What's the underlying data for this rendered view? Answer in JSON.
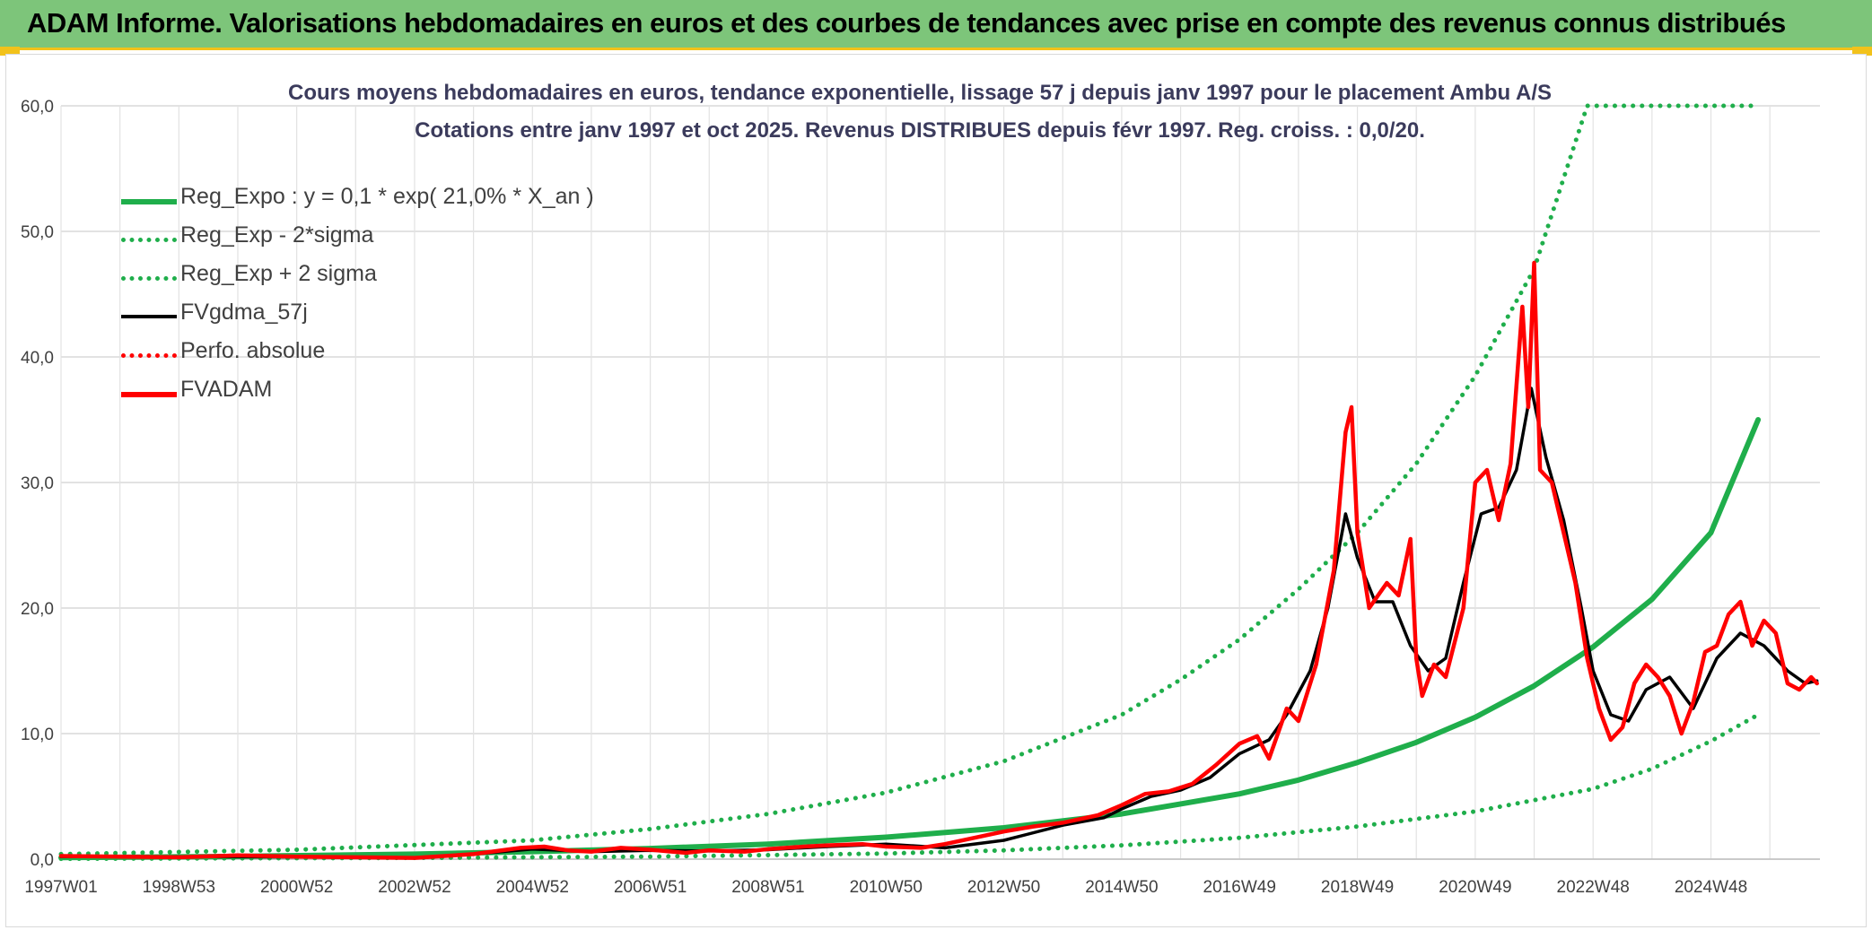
{
  "header": {
    "title": "ADAM Informe. Valorisations hebdomadaires en euros et des courbes de tendances avec prise en compte des revenus connus distribués"
  },
  "colors": {
    "header_bg": "#7dc57a",
    "accent_yellow": "#f2c21b",
    "reg_expo": "#1fae4b",
    "fvgdma": "#000000",
    "fvadam": "#ff0000"
  },
  "chart_data": {
    "type": "line",
    "title": "Cours moyens hebdomadaires en euros, tendance exponentielle, lissage 57 j depuis janv 1997 pour le placement Ambu A/S",
    "subtitle": "Cotations entre janv 1997 et oct 2025. Revenus DISTRIBUES depuis févr 1997. Reg. croiss. : 0,0/20.",
    "ylim": [
      0,
      60
    ],
    "yticks": [
      "0,0",
      "10,0",
      "20,0",
      "30,0",
      "40,0",
      "50,0",
      "60,0"
    ],
    "xlim": [
      1997.0,
      2025.8
    ],
    "xticks": [
      {
        "label": "1997W01",
        "x": 1997.0
      },
      {
        "label": "1998W53",
        "x": 1999.0
      },
      {
        "label": "2000W52",
        "x": 2001.0
      },
      {
        "label": "2002W52",
        "x": 2003.0
      },
      {
        "label": "2004W52",
        "x": 2005.0
      },
      {
        "label": "2006W51",
        "x": 2007.0
      },
      {
        "label": "2008W51",
        "x": 2009.0
      },
      {
        "label": "2010W50",
        "x": 2011.0
      },
      {
        "label": "2012W50",
        "x": 2013.0
      },
      {
        "label": "2014W50",
        "x": 2015.0
      },
      {
        "label": "2016W49",
        "x": 2017.0
      },
      {
        "label": "2018W49",
        "x": 2019.0
      },
      {
        "label": "2020W49",
        "x": 2021.0
      },
      {
        "label": "2022W48",
        "x": 2023.0
      },
      {
        "label": "2024W48",
        "x": 2025.0
      }
    ],
    "grid": true,
    "legend_position": "top-left",
    "legend": [
      {
        "label": "Reg_Expo : y = 0,1 * exp( 21,0% *  X_an )",
        "color": "#1fae4b",
        "style": "solid"
      },
      {
        "label": "Reg_Exp - 2*sigma",
        "color": "#1fae4b",
        "style": "dotted"
      },
      {
        "label": "Reg_Exp + 2 sigma",
        "color": "#1fae4b",
        "style": "dotted"
      },
      {
        "label": "FVgdma_57j",
        "color": "#000000",
        "style": "solid"
      },
      {
        "label": "Perfo. absolue",
        "color": "#ff0000",
        "style": "dotted"
      },
      {
        "label": "FVADAM",
        "color": "#ff0000",
        "style": "solid"
      }
    ],
    "series": [
      {
        "name": "Reg_Expo : y = 0,1 * exp( 21,0% *  X_an )",
        "points": [
          [
            1997.0,
            0.12
          ],
          [
            2000.0,
            0.22
          ],
          [
            2003.0,
            0.4
          ],
          [
            2005.0,
            0.6
          ],
          [
            2007.0,
            0.85
          ],
          [
            2009.0,
            1.2
          ],
          [
            2011.0,
            1.75
          ],
          [
            2013.0,
            2.5
          ],
          [
            2015.0,
            3.6
          ],
          [
            2016.0,
            4.4
          ],
          [
            2017.0,
            5.2
          ],
          [
            2018.0,
            6.3
          ],
          [
            2019.0,
            7.7
          ],
          [
            2020.0,
            9.3
          ],
          [
            2021.0,
            11.3
          ],
          [
            2022.0,
            13.8
          ],
          [
            2023.0,
            16.9
          ],
          [
            2024.0,
            20.7
          ],
          [
            2025.0,
            26.0
          ],
          [
            2025.8,
            35.0
          ]
        ]
      },
      {
        "name": "Reg_Exp - 2*sigma",
        "points": [
          [
            1997.0,
            0.03
          ],
          [
            2003.0,
            0.1
          ],
          [
            2007.0,
            0.2
          ],
          [
            2011.0,
            0.45
          ],
          [
            2013.0,
            0.7
          ],
          [
            2015.0,
            1.1
          ],
          [
            2017.0,
            1.7
          ],
          [
            2019.0,
            2.6
          ],
          [
            2021.0,
            3.8
          ],
          [
            2023.0,
            5.6
          ],
          [
            2024.0,
            7.2
          ],
          [
            2025.0,
            9.4
          ],
          [
            2025.8,
            11.5
          ]
        ]
      },
      {
        "name": "Reg_Exp + 2 sigma",
        "points": [
          [
            1997.0,
            0.4
          ],
          [
            2001.0,
            0.75
          ],
          [
            2005.0,
            1.5
          ],
          [
            2007.0,
            2.4
          ],
          [
            2009.0,
            3.6
          ],
          [
            2011.0,
            5.3
          ],
          [
            2013.0,
            7.8
          ],
          [
            2015.0,
            11.5
          ],
          [
            2016.0,
            14.3
          ],
          [
            2017.0,
            17.5
          ],
          [
            2018.0,
            21.5
          ],
          [
            2019.0,
            26.0
          ],
          [
            2020.0,
            31.5
          ],
          [
            2021.0,
            38.5
          ],
          [
            2022.0,
            47.0
          ],
          [
            2022.9,
            60.0
          ],
          [
            2025.8,
            60.0
          ]
        ]
      },
      {
        "name": "FVgdma_57j",
        "points": [
          [
            1997.0,
            0.2
          ],
          [
            2000.0,
            0.2
          ],
          [
            2002.0,
            0.15
          ],
          [
            2003.0,
            0.1
          ],
          [
            2004.0,
            0.4
          ],
          [
            2005.0,
            0.8
          ],
          [
            2006.0,
            0.6
          ],
          [
            2007.0,
            0.7
          ],
          [
            2008.0,
            0.65
          ],
          [
            2009.0,
            0.75
          ],
          [
            2010.0,
            1.0
          ],
          [
            2011.0,
            1.2
          ],
          [
            2012.0,
            0.9
          ],
          [
            2013.0,
            1.5
          ],
          [
            2014.0,
            2.7
          ],
          [
            2014.7,
            3.3
          ],
          [
            2015.0,
            4.0
          ],
          [
            2015.5,
            5.0
          ],
          [
            2016.0,
            5.5
          ],
          [
            2016.5,
            6.5
          ],
          [
            2017.0,
            8.4
          ],
          [
            2017.5,
            9.5
          ],
          [
            2017.8,
            11.5
          ],
          [
            2018.2,
            15.0
          ],
          [
            2018.5,
            20.0
          ],
          [
            2018.8,
            27.5
          ],
          [
            2019.0,
            24.0
          ],
          [
            2019.3,
            20.5
          ],
          [
            2019.6,
            20.5
          ],
          [
            2019.9,
            17.0
          ],
          [
            2020.2,
            15.0
          ],
          [
            2020.5,
            16.0
          ],
          [
            2020.8,
            22.0
          ],
          [
            2021.1,
            27.5
          ],
          [
            2021.4,
            28.0
          ],
          [
            2021.7,
            31.0
          ],
          [
            2021.95,
            37.5
          ],
          [
            2022.2,
            32.0
          ],
          [
            2022.5,
            27.0
          ],
          [
            2022.8,
            20.0
          ],
          [
            2023.0,
            15.0
          ],
          [
            2023.3,
            11.5
          ],
          [
            2023.6,
            11.0
          ],
          [
            2023.9,
            13.5
          ],
          [
            2024.3,
            14.5
          ],
          [
            2024.7,
            12.0
          ],
          [
            2025.1,
            16.0
          ],
          [
            2025.5,
            18.0
          ],
          [
            2025.9,
            17.0
          ],
          [
            2026.3,
            15.0
          ],
          [
            2026.6,
            14.0
          ],
          [
            2026.8,
            14.2
          ]
        ]
      },
      {
        "name": "FVADAM",
        "points": [
          [
            1997.0,
            0.25
          ],
          [
            1998.0,
            0.2
          ],
          [
            1999.0,
            0.15
          ],
          [
            2000.0,
            0.3
          ],
          [
            2001.0,
            0.2
          ],
          [
            2002.0,
            0.15
          ],
          [
            2003.0,
            0.1
          ],
          [
            2004.0,
            0.4
          ],
          [
            2004.8,
            0.9
          ],
          [
            2005.2,
            1.0
          ],
          [
            2005.6,
            0.7
          ],
          [
            2006.0,
            0.6
          ],
          [
            2006.5,
            0.9
          ],
          [
            2007.0,
            0.75
          ],
          [
            2007.6,
            0.5
          ],
          [
            2008.0,
            0.7
          ],
          [
            2008.6,
            0.6
          ],
          [
            2009.0,
            0.8
          ],
          [
            2009.6,
            1.0
          ],
          [
            2010.0,
            1.1
          ],
          [
            2010.6,
            1.2
          ],
          [
            2011.0,
            1.0
          ],
          [
            2011.6,
            0.9
          ],
          [
            2012.0,
            1.2
          ],
          [
            2012.6,
            1.8
          ],
          [
            2013.0,
            2.2
          ],
          [
            2013.5,
            2.6
          ],
          [
            2014.0,
            2.9
          ],
          [
            2014.6,
            3.5
          ],
          [
            2015.0,
            4.3
          ],
          [
            2015.4,
            5.2
          ],
          [
            2015.8,
            5.4
          ],
          [
            2016.2,
            6.0
          ],
          [
            2016.6,
            7.5
          ],
          [
            2017.0,
            9.2
          ],
          [
            2017.3,
            9.8
          ],
          [
            2017.5,
            8.0
          ],
          [
            2017.8,
            12.0
          ],
          [
            2018.0,
            11.0
          ],
          [
            2018.3,
            15.5
          ],
          [
            2018.6,
            23.0
          ],
          [
            2018.8,
            34.0
          ],
          [
            2018.9,
            36.0
          ],
          [
            2019.0,
            26.0
          ],
          [
            2019.2,
            20.0
          ],
          [
            2019.5,
            22.0
          ],
          [
            2019.7,
            21.0
          ],
          [
            2019.9,
            25.5
          ],
          [
            2020.0,
            16.0
          ],
          [
            2020.1,
            13.0
          ],
          [
            2020.3,
            15.5
          ],
          [
            2020.5,
            14.5
          ],
          [
            2020.8,
            20.0
          ],
          [
            2021.0,
            30.0
          ],
          [
            2021.2,
            31.0
          ],
          [
            2021.4,
            27.0
          ],
          [
            2021.6,
            31.5
          ],
          [
            2021.8,
            44.0
          ],
          [
            2021.9,
            36.0
          ],
          [
            2022.0,
            47.5
          ],
          [
            2022.1,
            31.0
          ],
          [
            2022.3,
            30.0
          ],
          [
            2022.5,
            26.0
          ],
          [
            2022.7,
            22.0
          ],
          [
            2022.9,
            16.0
          ],
          [
            2023.1,
            12.0
          ],
          [
            2023.3,
            9.5
          ],
          [
            2023.5,
            10.5
          ],
          [
            2023.7,
            14.0
          ],
          [
            2023.9,
            15.5
          ],
          [
            2024.1,
            14.5
          ],
          [
            2024.3,
            13.0
          ],
          [
            2024.5,
            10.0
          ],
          [
            2024.7,
            12.5
          ],
          [
            2024.9,
            16.5
          ],
          [
            2025.1,
            17.0
          ],
          [
            2025.3,
            19.5
          ],
          [
            2025.5,
            20.5
          ],
          [
            2025.7,
            17.0
          ],
          [
            2025.9,
            19.0
          ],
          [
            2026.1,
            18.0
          ],
          [
            2026.3,
            14.0
          ],
          [
            2026.5,
            13.5
          ],
          [
            2026.7,
            14.5
          ],
          [
            2026.8,
            14.0
          ]
        ]
      }
    ]
  }
}
